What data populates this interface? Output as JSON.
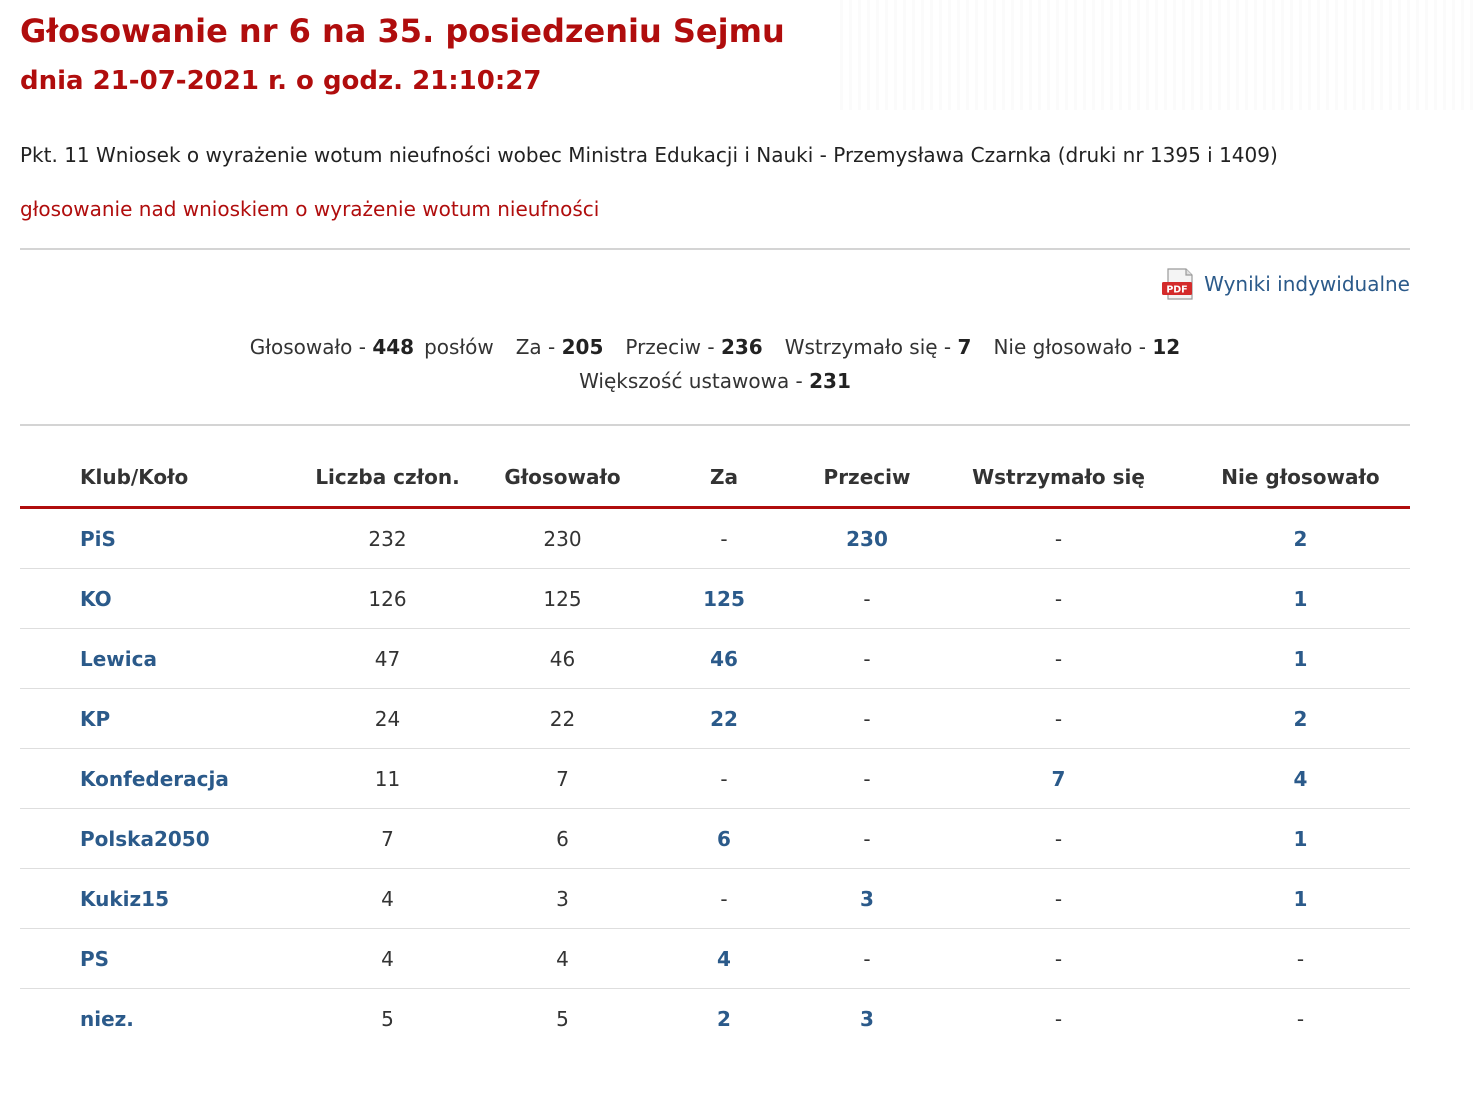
{
  "header": {
    "title": "Głosowanie nr 6 na 35. posiedzeniu Sejmu",
    "subtitle": "dnia 21-07-2021 r. o godz. 21:10:27"
  },
  "point_text": "Pkt. 11 Wniosek o wyrażenie wotum nieufności wobec Ministra Edukacji i Nauki - Przemysława Czarnka (druki nr 1395 i 1409)",
  "subject_text": "głosowanie nad wnioskiem o wyrażenie wotum nieufności",
  "pdf_link": {
    "label": "Wyniki indywidualne",
    "icon": "pdf-icon",
    "icon_text": "PDF"
  },
  "summary": {
    "voted_label": "Głosowało - ",
    "voted_value": "448",
    "voted_suffix": "posłów",
    "for_label": "Za - ",
    "for_value": "205",
    "against_label": "Przeciw - ",
    "against_value": "236",
    "abstain_label": "Wstrzymało się - ",
    "abstain_value": "7",
    "notvoted_label": "Nie głosowało - ",
    "notvoted_value": "12",
    "majority_label": "Większość ustawowa - ",
    "majority_value": "231"
  },
  "table": {
    "headers": [
      "Klub/Koło",
      "Liczba człon.",
      "Głosowało",
      "Za",
      "Przeciw",
      "Wstrzymało się",
      "Nie głosowało"
    ],
    "rows": [
      [
        "PiS",
        "232",
        "230",
        "-",
        "230",
        "-",
        "2"
      ],
      [
        "KO",
        "126",
        "125",
        "125",
        "-",
        "-",
        "1"
      ],
      [
        "Lewica",
        "47",
        "46",
        "46",
        "-",
        "-",
        "1"
      ],
      [
        "KP",
        "24",
        "22",
        "22",
        "-",
        "-",
        "2"
      ],
      [
        "Konfederacja",
        "11",
        "7",
        "-",
        "-",
        "7",
        "4"
      ],
      [
        "Polska2050",
        "7",
        "6",
        "6",
        "-",
        "-",
        "1"
      ],
      [
        "Kukiz15",
        "4",
        "3",
        "-",
        "3",
        "-",
        "1"
      ],
      [
        "PS",
        "4",
        "4",
        "4",
        "-",
        "-",
        "-"
      ],
      [
        "niez.",
        "5",
        "5",
        "2",
        "3",
        "-",
        "-"
      ]
    ]
  },
  "colors": {
    "accent_red": "#b00d0d",
    "link_blue": "#2b5a8a",
    "divider": "#d4d4d4"
  }
}
